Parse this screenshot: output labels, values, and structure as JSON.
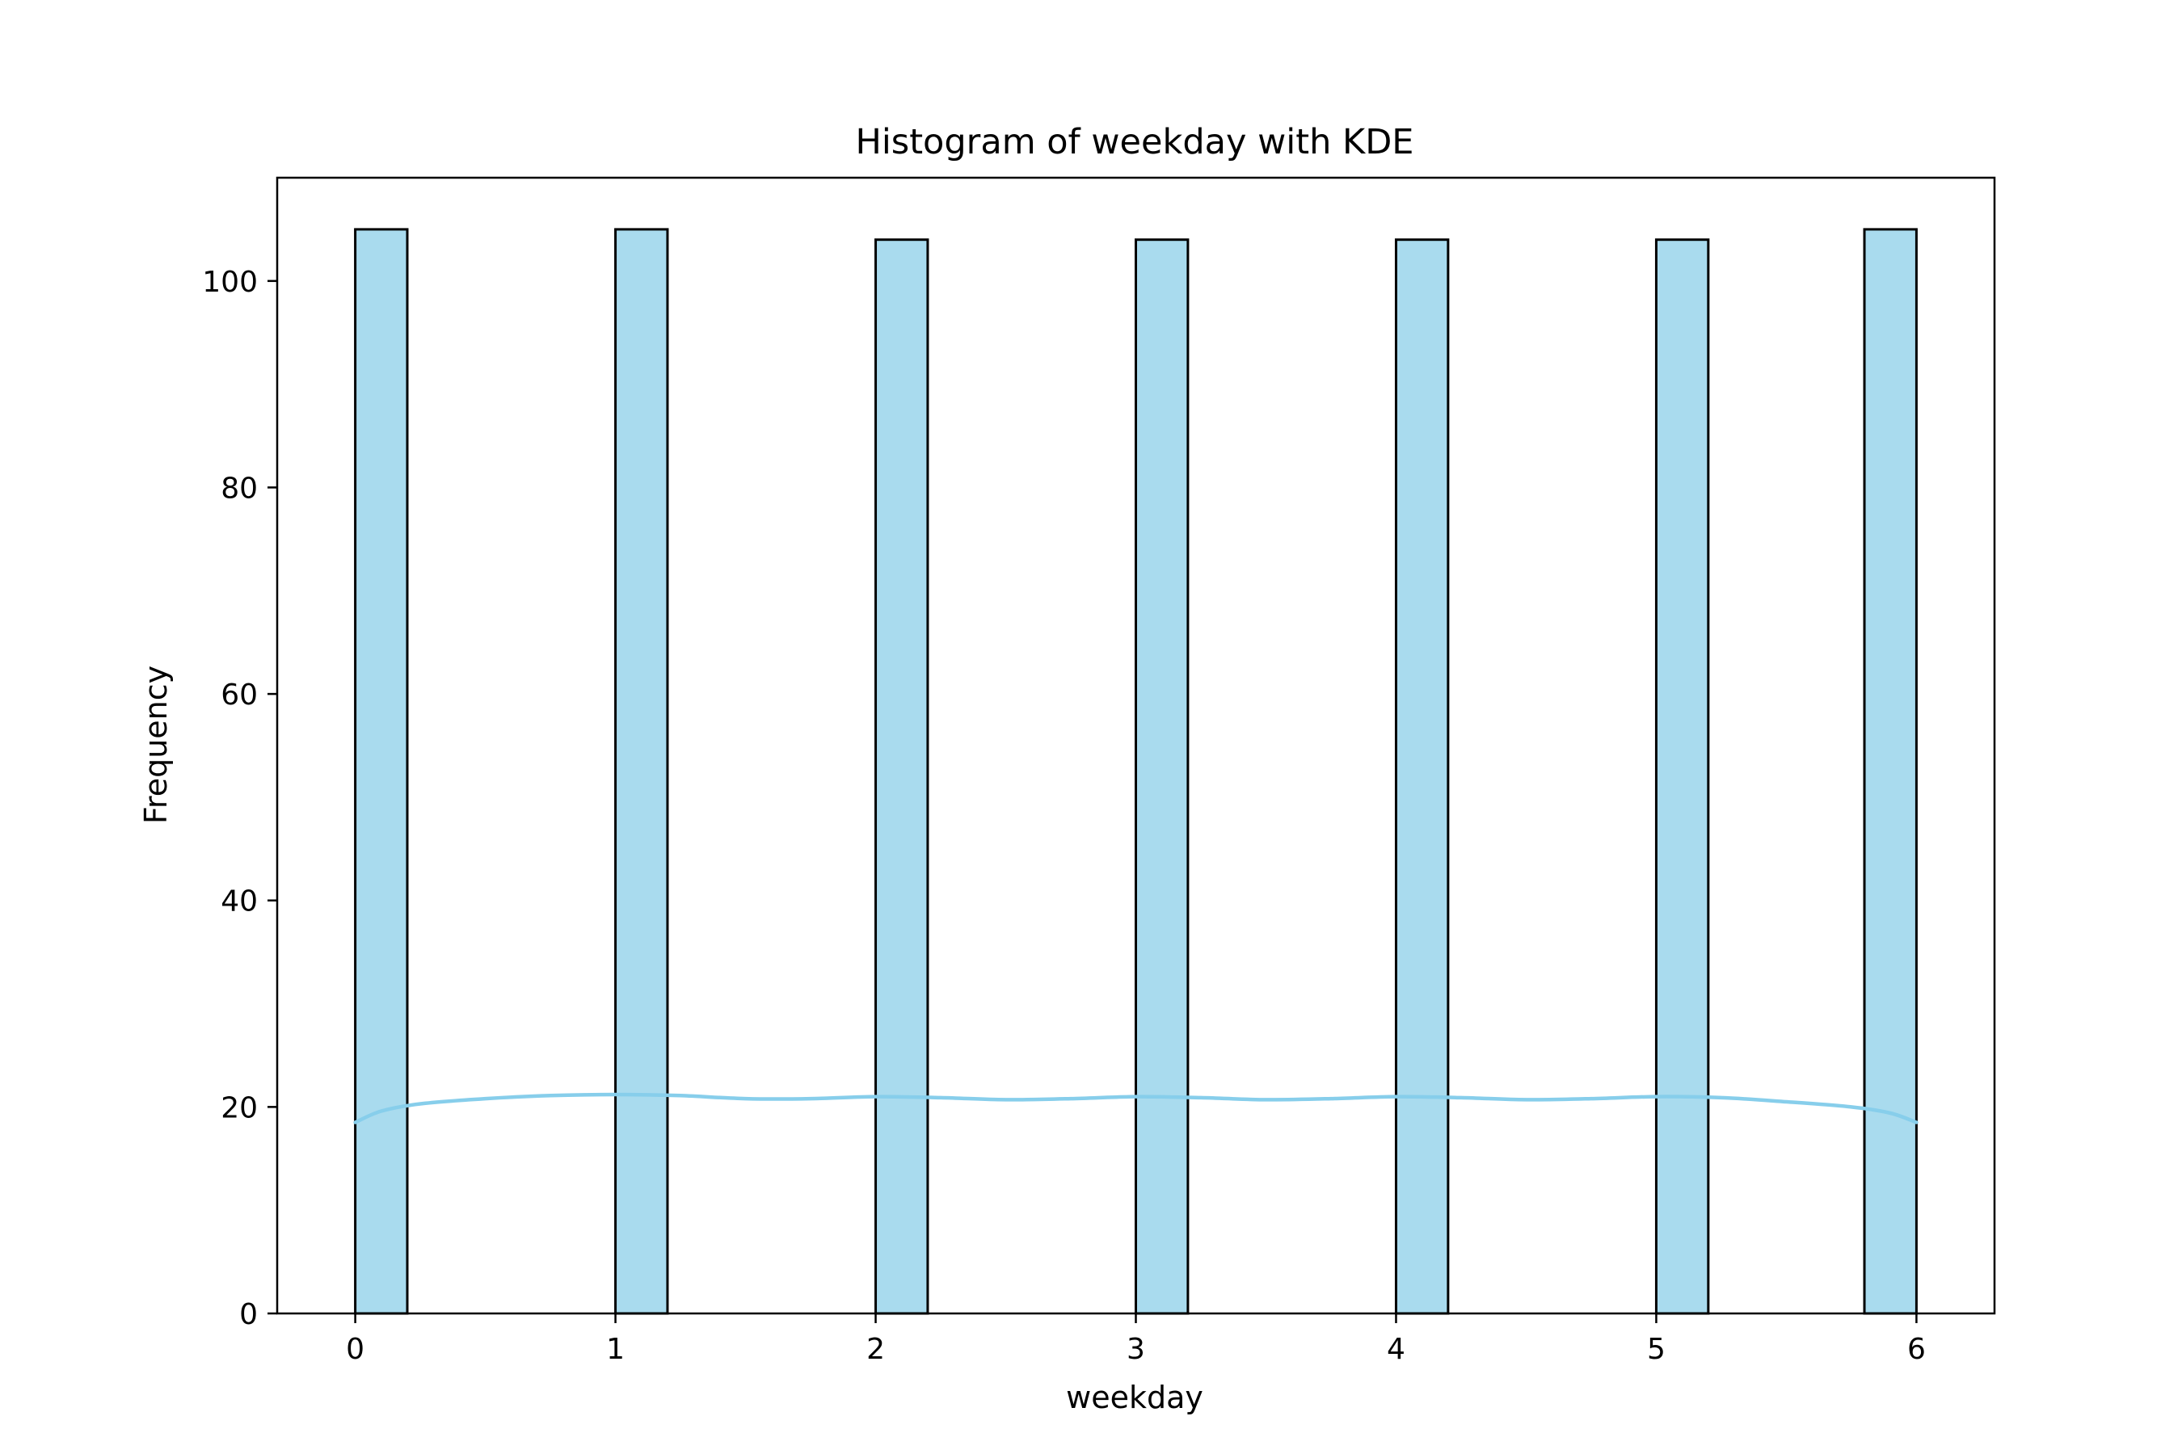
{
  "chart_data": {
    "type": "bar",
    "title": "Histogram of weekday with KDE",
    "xlabel": "weekday",
    "ylabel": "Frequency",
    "xlim": [
      -0.3,
      6.3
    ],
    "ylim": [
      0,
      110
    ],
    "xticks": [
      0,
      1,
      2,
      3,
      4,
      5,
      6
    ],
    "yticks": [
      0,
      20,
      40,
      60,
      80,
      100
    ],
    "bin_width": 0.2,
    "bars": [
      {
        "x_start": 0.0,
        "x_end": 0.2,
        "count": 105
      },
      {
        "x_start": 1.0,
        "x_end": 1.2,
        "count": 105
      },
      {
        "x_start": 2.0,
        "x_end": 2.2,
        "count": 104
      },
      {
        "x_start": 3.0,
        "x_end": 3.2,
        "count": 104
      },
      {
        "x_start": 4.0,
        "x_end": 4.2,
        "count": 104
      },
      {
        "x_start": 5.0,
        "x_end": 5.2,
        "count": 104
      },
      {
        "x_start": 5.8,
        "x_end": 6.0,
        "count": 105
      }
    ],
    "kde": {
      "x": [
        0,
        0.1,
        0.25,
        0.5,
        0.75,
        1.0,
        1.25,
        1.5,
        1.75,
        2.0,
        2.25,
        2.5,
        2.75,
        3.0,
        3.25,
        3.5,
        3.75,
        4.0,
        4.25,
        4.5,
        4.75,
        5.0,
        5.25,
        5.5,
        5.75,
        5.9,
        6.0
      ],
      "y": [
        18.5,
        19.6,
        20.3,
        20.8,
        21.1,
        21.2,
        21.1,
        20.8,
        20.8,
        21.0,
        20.9,
        20.7,
        20.8,
        21.0,
        20.9,
        20.7,
        20.8,
        21.0,
        20.9,
        20.7,
        20.8,
        21.0,
        20.9,
        20.5,
        20.0,
        19.4,
        18.5
      ]
    },
    "colors": {
      "bar_fill": "#a9dbee",
      "bar_edge": "#000000",
      "kde_line": "#87ceeb"
    },
    "grid": false,
    "legend": "none"
  }
}
